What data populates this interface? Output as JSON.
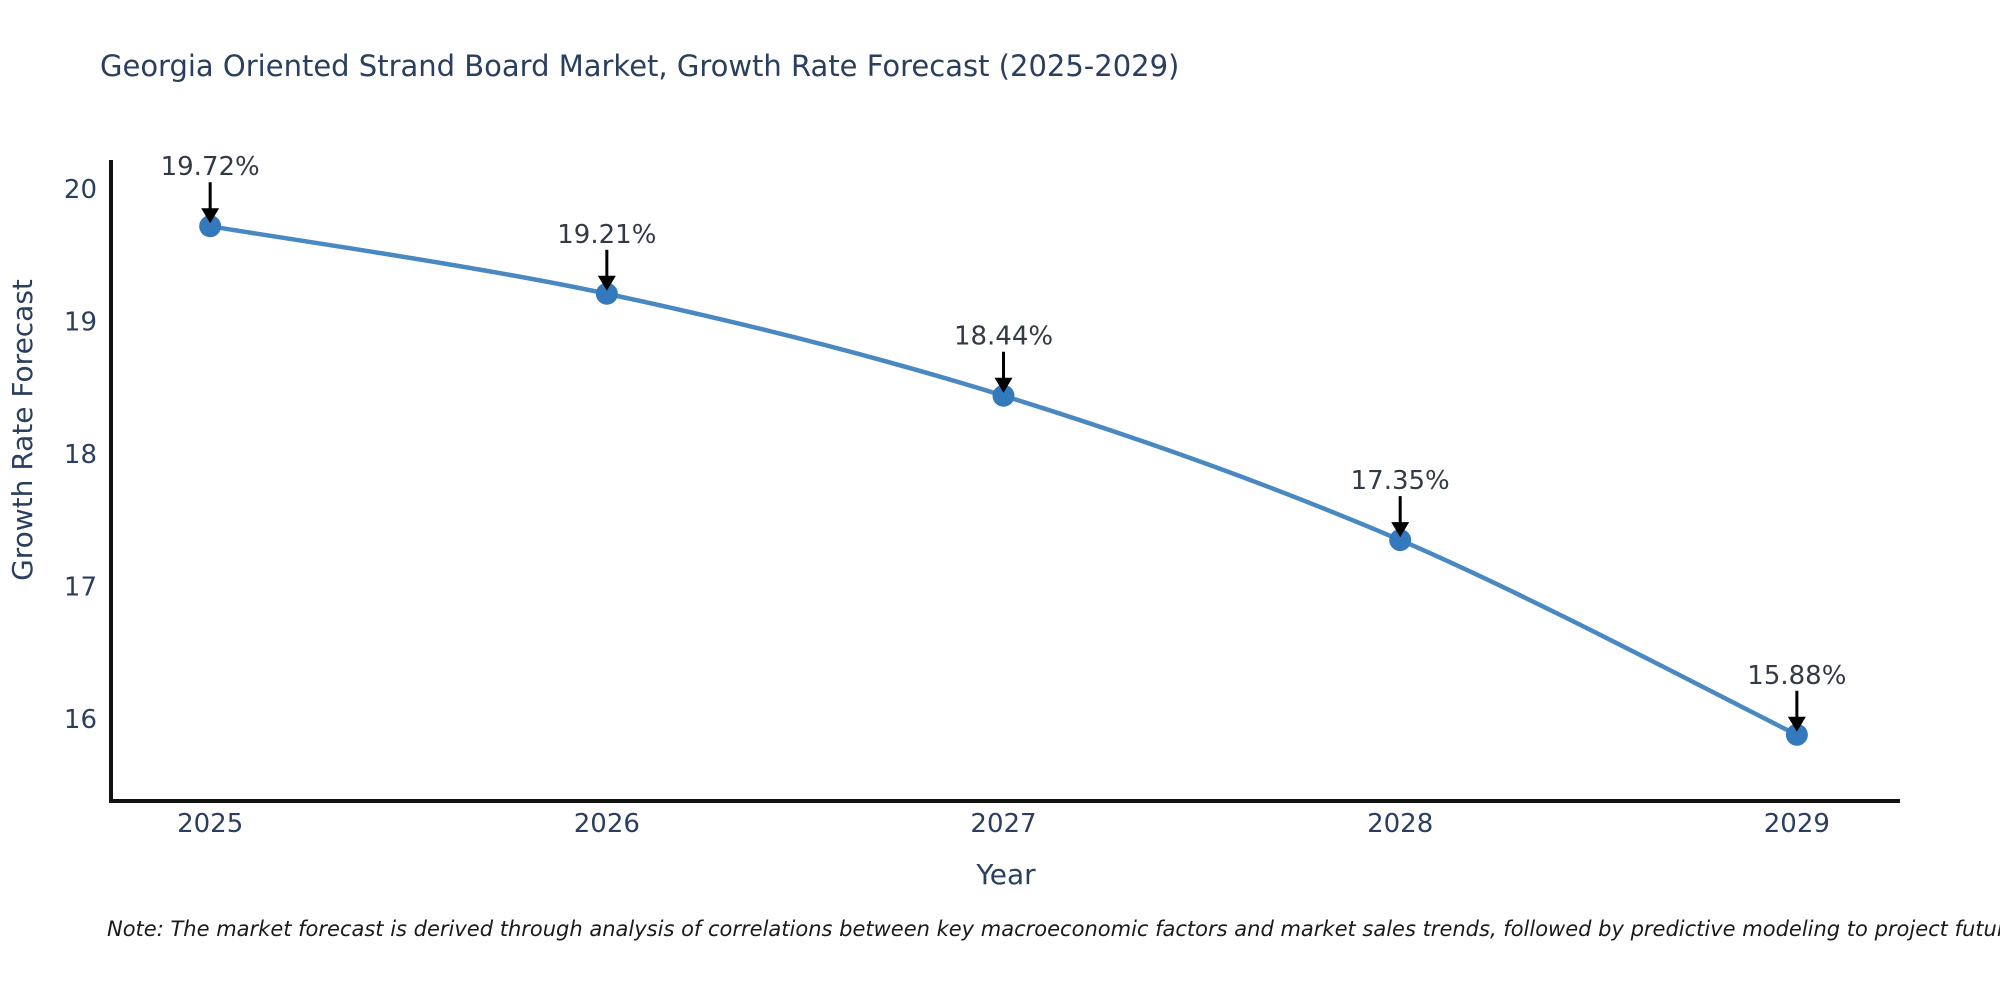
{
  "note": "Note: The market forecast is derived through analysis of correlations between key macroeconomic factors and market sales trends, followed by predictive modeling to project future sales",
  "chart_data": {
    "type": "line",
    "title": "Georgia Oriented Strand Board Market, Growth Rate Forecast (2025-2029)",
    "xlabel": "Year",
    "ylabel": "Growth Rate Forecast",
    "x": [
      2025,
      2026,
      2027,
      2028,
      2029
    ],
    "values": [
      19.72,
      19.21,
      18.44,
      17.35,
      15.88
    ],
    "point_labels": [
      "19.72%",
      "19.21%",
      "18.44%",
      "17.35%",
      "15.88%"
    ],
    "xtick_labels": [
      "2025",
      "2026",
      "2027",
      "2028",
      "2029"
    ],
    "ytick_values": [
      16,
      17,
      18,
      19,
      20
    ],
    "ytick_labels": [
      "16",
      "17",
      "18",
      "19",
      "20"
    ],
    "xlim": [
      2024.75,
      2029.26
    ],
    "ylim": [
      15.38,
      20.22
    ],
    "grid": false,
    "legend": false,
    "line_shape": "spline",
    "marker": "circle",
    "colors": {
      "line": "#4a88c2",
      "marker": "#3579bd",
      "axis": "#111111",
      "title_text": "#2a3f5f",
      "tick_text": "#2a3f5f",
      "annotation_text": "#333a45",
      "arrow": "#000000",
      "note_text": "#1a1a1a",
      "background": "#ffffff"
    }
  }
}
